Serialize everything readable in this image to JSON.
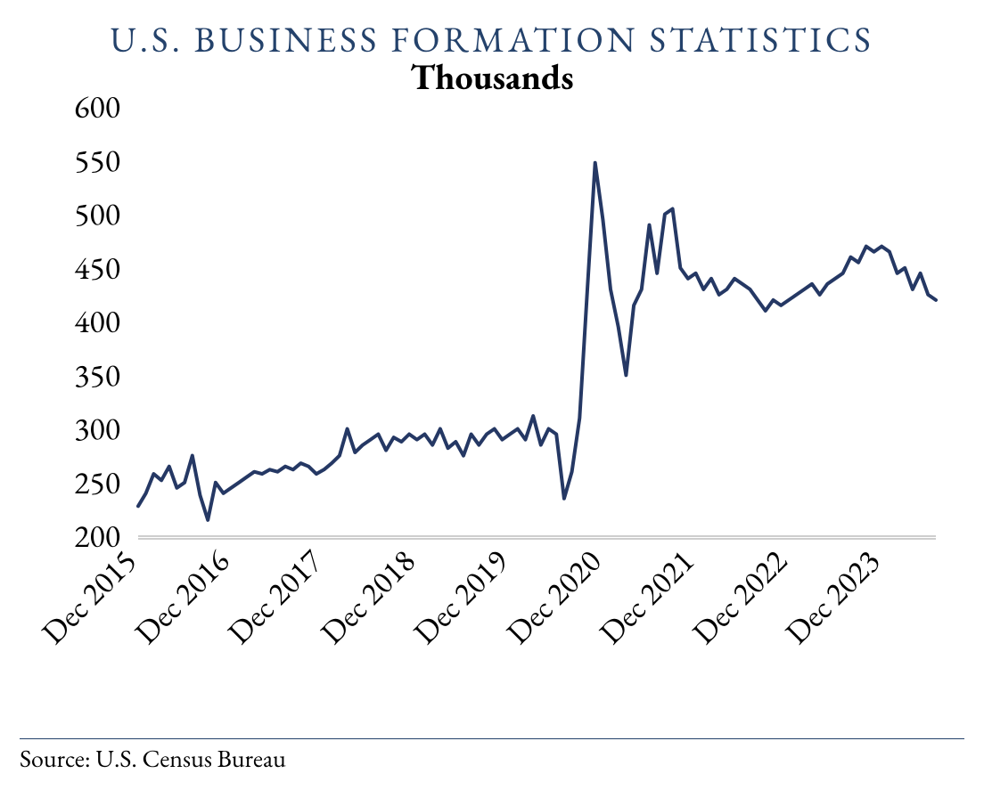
{
  "title": "U.S. BUSINESS FORMATION STATISTICS",
  "title_color": "#24426b",
  "subtitle": "Thousands",
  "subtitle_color": "#000000",
  "source": "Source: U.S. Census Bureau",
  "divider_color": "#24426b",
  "chart": {
    "type": "line",
    "background_color": "#ffffff",
    "line_color": "#253864",
    "line_width": 4,
    "axis_line_color": "#b0b0b0",
    "ylim": [
      200,
      600
    ],
    "ytick_step": 50,
    "ytick_labels": [
      "200",
      "250",
      "300",
      "350",
      "400",
      "450",
      "500",
      "550",
      "600"
    ],
    "ytick_fontsize": 36,
    "x_start_index": 0,
    "x_end_index": 103,
    "xtick_indices": [
      0,
      12,
      24,
      36,
      48,
      60,
      72,
      84,
      96
    ],
    "xtick_labels": [
      "Dec 2015",
      "Dec 2016",
      "Dec 2017",
      "Dec 2018",
      "Dec 2019",
      "Dec 2020",
      "Dec 2021",
      "Dec 2022",
      "Dec 2023"
    ],
    "xtick_fontsize": 36,
    "xtick_rotation_deg": -45,
    "values": [
      228,
      240,
      258,
      252,
      265,
      245,
      250,
      275,
      238,
      215,
      250,
      240,
      245,
      250,
      255,
      260,
      258,
      262,
      260,
      265,
      262,
      268,
      265,
      258,
      262,
      268,
      275,
      300,
      278,
      285,
      290,
      295,
      280,
      292,
      288,
      295,
      290,
      295,
      285,
      300,
      282,
      288,
      275,
      295,
      285,
      295,
      300,
      290,
      295,
      300,
      290,
      312,
      285,
      300,
      295,
      235,
      260,
      310,
      430,
      548,
      495,
      430,
      395,
      350,
      415,
      430,
      490,
      445,
      500,
      505,
      450,
      440,
      445,
      430,
      440,
      425,
      430,
      440,
      435,
      430,
      420,
      410,
      420,
      415,
      420,
      425,
      430,
      435,
      425,
      435,
      440,
      445,
      460,
      455,
      470,
      465,
      470,
      465,
      445,
      450,
      430,
      445,
      425,
      420
    ]
  }
}
